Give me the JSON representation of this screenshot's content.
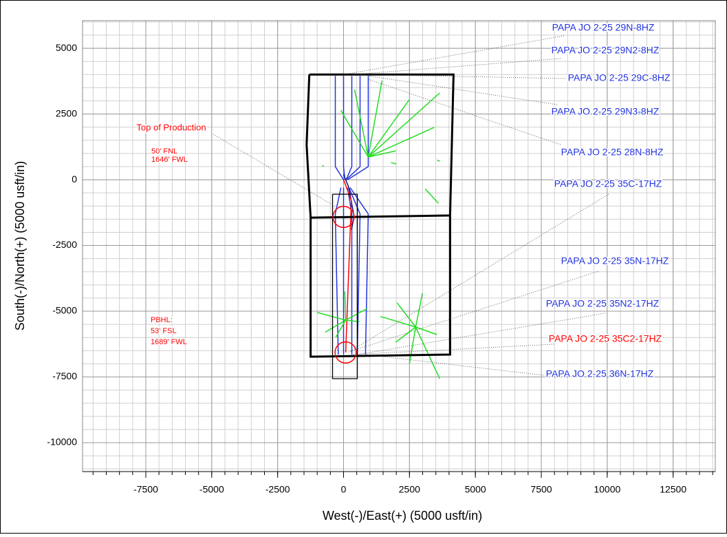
{
  "chart_data": {
    "type": "plan-view",
    "xlabel": "West(-)/East(+) (5000 usft/in)",
    "ylabel": "South(-)/North(+) (5000 usft/in)",
    "xlim": [
      -9900,
      14100
    ],
    "ylim": [
      -11100,
      6050
    ],
    "xticks": [
      -7500,
      -5000,
      -2500,
      0,
      2500,
      5000,
      7500,
      10000,
      12500
    ],
    "yticks": [
      5000,
      2500,
      0,
      -2500,
      -5000,
      -7500,
      -10000
    ],
    "grid": true,
    "boundaries": [
      {
        "color": "#000000",
        "x": [
          -1300,
          4170,
          4040,
          4040,
          -1250,
          -1250,
          -1400,
          -1300
        ],
        "y": [
          4000,
          4000,
          -1360,
          -6650,
          -6730,
          -1440,
          1330,
          4000
        ]
      },
      {
        "color": "#000000",
        "x": [
          -1250,
          4040
        ],
        "y": [
          -1440,
          -1360
        ]
      }
    ],
    "boxes": [
      {
        "color": "#000000",
        "x": [
          -417,
          521,
          521,
          -417,
          -417
        ],
        "y": [
          -550,
          -550,
          -7565,
          -7565,
          -550
        ]
      }
    ],
    "series": [
      {
        "color": "#2233dd",
        "x": [
          0,
          -312,
          -312
        ],
        "y": [
          0,
          500,
          3950
        ]
      },
      {
        "color": "#2233dd",
        "x": [
          50,
          0,
          0
        ],
        "y": [
          0,
          500,
          3950
        ]
      },
      {
        "color": "#2233dd",
        "x": [
          100,
          312,
          312
        ],
        "y": [
          0,
          500,
          3950
        ]
      },
      {
        "color": "#2233dd",
        "x": [
          100,
          625,
          625
        ],
        "y": [
          0,
          500,
          3950
        ]
      },
      {
        "color": "#2233dd",
        "x": [
          150,
          937,
          937
        ],
        "y": [
          0,
          500,
          3950
        ]
      },
      {
        "color": "#2233dd",
        "x": [
          -100,
          -312,
          -200
        ],
        "y": [
          -300,
          -1300,
          -6650
        ]
      },
      {
        "color": "#2233dd",
        "x": [
          0,
          0,
          0
        ],
        "y": [
          -300,
          -1300,
          -6650
        ]
      },
      {
        "color": "#2233dd",
        "x": [
          150,
          312,
          312
        ],
        "y": [
          -300,
          -1300,
          -6650
        ]
      },
      {
        "color": "#2233dd",
        "x": [
          200,
          625,
          521
        ],
        "y": [
          -300,
          -1300,
          -6650
        ]
      },
      {
        "color": "#2233dd",
        "x": [
          250,
          937,
          833
        ],
        "y": [
          -300,
          -1300,
          -6650
        ]
      },
      {
        "color": "#111177",
        "x": [
          0,
          200,
          400,
          300
        ],
        "y": [
          200,
          -300,
          -1400,
          -1900
        ]
      },
      {
        "color": "#ff0000",
        "x": [
          0,
          300,
          260,
          80
        ],
        "y": [
          0,
          -800,
          -1700,
          -6570
        ]
      },
      {
        "color": "#22dd22",
        "x": [
          937,
          3646,
          null,
          937,
          3438,
          null,
          937,
          1458,
          null,
          937,
          417,
          null,
          937,
          -104,
          null,
          937,
          1979,
          null,
          937,
          2500
        ],
        "y": [
          864,
          3298,
          null,
          864,
          1990,
          null,
          864,
          3770,
          null,
          864,
          3430,
          null,
          864,
          2644,
          null,
          864,
          1100,
          null,
          864,
          3050
        ]
      },
      {
        "color": "#22dd22",
        "x": [
          2734,
          2031,
          null,
          2734,
          1979,
          null,
          2734,
          3646,
          null,
          2734,
          2990,
          null,
          2734,
          3542,
          null,
          2734,
          2500,
          null,
          2734,
          1400
        ],
        "y": [
          -5602,
          -4686,
          null,
          -5602,
          -6180,
          null,
          -5602,
          -7565,
          null,
          -5602,
          -4320,
          null,
          -5602,
          -5890,
          null,
          -5602,
          -7000,
          null,
          -5602,
          -5200
        ]
      },
      {
        "color": "#22dd22",
        "x": [
          78,
          -1000,
          null,
          78,
          -700,
          null,
          78,
          600,
          null,
          78,
          50,
          null,
          78,
          900,
          null,
          78,
          -300
        ],
        "y": [
          -5340,
          -5050,
          null,
          -5340,
          -5800,
          null,
          -5340,
          -5400,
          null,
          -5340,
          -4250,
          null,
          -5340,
          -4900,
          null,
          -5340,
          -6000
        ]
      },
      {
        "color": "#22dd22",
        "x": [
          3100,
          3600,
          null,
          1800,
          2000,
          null,
          3550,
          3650,
          null,
          -800,
          -750
        ],
        "y": [
          -350,
          -900,
          null,
          650,
          600,
          null,
          750,
          700,
          null,
          550,
          500
        ]
      }
    ],
    "circles": [
      {
        "color": "#ff0000",
        "x": 0,
        "y": -1414,
        "r": 400
      },
      {
        "color": "#ff0000",
        "x": 78,
        "y": -6570,
        "r": 400
      }
    ],
    "annotations": [
      {
        "lines": [
          "PAPA JO 2-25 29N-8HZ"
        ],
        "color": "#2233dd",
        "x": 0,
        "y": 4000
      },
      {
        "lines": [
          "PAPA JO 2-25 29N2-8HZ"
        ],
        "color": "#2233dd",
        "x": 312,
        "y": 4000
      },
      {
        "lines": [
          "PAPA JO 2-25 29C-8HZ"
        ],
        "color": "#2233dd",
        "x": 625,
        "y": 4000
      },
      {
        "lines": [
          "PAPA JO 2-25 29N3-8HZ"
        ],
        "color": "#2233dd",
        "x": 937,
        "y": 3950
      },
      {
        "lines": [
          "PAPA JO 2-25 28N-8HZ"
        ],
        "color": "#2233dd",
        "x": 937,
        "y": 3820
      },
      {
        "lines": [
          "PAPA JO 2-25 35C-17HZ"
        ],
        "color": "#2233dd",
        "x": 260,
        "y": -6520
      },
      {
        "lines": [
          "PAPA JO 2-25 35N-17HZ"
        ],
        "color": "#2233dd",
        "x": 130,
        "y": -6570
      },
      {
        "lines": [
          "PAPA JO 2-25 35N2-17HZ"
        ],
        "color": "#2233dd",
        "x": 521,
        "y": -6650
      },
      {
        "lines": [
          "PAPA JO 2-25 35C2-17HZ"
        ],
        "color": "#ff0000",
        "x": 312,
        "y": -6650
      },
      {
        "lines": [
          "PAPA JO 2-25 36N-17HZ"
        ],
        "color": "#2233dd",
        "x": 833,
        "y": -6650
      },
      {
        "lines": [
          "Top of Production",
          "50' FNL",
          "1646' FWL"
        ],
        "color": "#ff0000",
        "x": -312,
        "y": -1020
      },
      {
        "lines": [
          "PBHL:",
          "53' FSL",
          "1689' FWL"
        ],
        "color": "#ff0000",
        "x": null,
        "y": null
      }
    ]
  }
}
